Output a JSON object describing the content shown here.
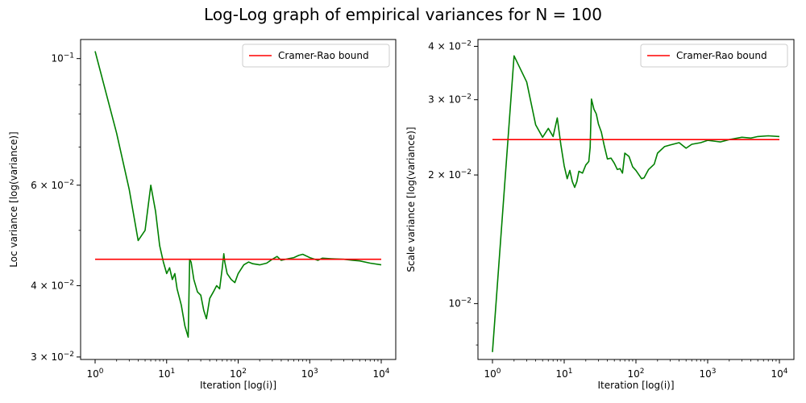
{
  "figure": {
    "title": "Log-Log graph of empirical variances for N = 100"
  },
  "colors": {
    "series": "#008000",
    "bound": "#ff0000",
    "axes": "#000000"
  },
  "chart_data": [
    {
      "type": "line",
      "xlabel": "Iteration [log(i)]",
      "ylabel": "Loc variance [log(variance)]",
      "xscale": "log",
      "yscale": "log",
      "xlim": [
        1,
        10000
      ],
      "ylim": [
        0.0297,
        0.108
      ],
      "x_ticks": [
        {
          "v": 1,
          "b": "10",
          "e": "0"
        },
        {
          "v": 10,
          "b": "10",
          "e": "1"
        },
        {
          "v": 100,
          "b": "10",
          "e": "2"
        },
        {
          "v": 1000,
          "b": "10",
          "e": "3"
        },
        {
          "v": 10000,
          "b": "10",
          "e": "4"
        }
      ],
      "y_ticks": [
        {
          "v": 0.1,
          "b": "10",
          "e": "−1"
        },
        {
          "v": 0.06,
          "b": "6 × 10",
          "e": "−2"
        },
        {
          "v": 0.04,
          "b": "4 × 10",
          "e": "−2"
        },
        {
          "v": 0.03,
          "b": "3 × 10",
          "e": "−2"
        }
      ],
      "y_minor": [
        0.05,
        0.07,
        0.08,
        0.09
      ],
      "legend": {
        "label": "Cramer-Rao bound",
        "position": "upper right"
      },
      "bound": {
        "name": "Cramer-Rao bound",
        "value": 0.0445,
        "x": [
          1,
          10000
        ]
      },
      "series": [
        {
          "x": [
            1,
            2,
            3,
            4,
            5,
            6,
            7,
            8,
            9,
            10,
            11,
            12,
            13,
            14,
            16,
            18,
            20,
            21,
            22,
            24,
            27,
            30,
            33,
            36,
            38,
            40,
            45,
            50,
            55,
            60,
            63,
            65,
            70,
            80,
            90,
            100,
            120,
            140,
            160,
            200,
            250,
            300,
            350,
            400,
            500,
            600,
            700,
            800,
            1000,
            1300,
            1500,
            2000,
            3000,
            4000,
            5000,
            7000,
            10000
          ],
          "y": [
            0.103,
            0.074,
            0.059,
            0.048,
            0.05,
            0.06,
            0.054,
            0.047,
            0.044,
            0.042,
            0.043,
            0.041,
            0.042,
            0.0395,
            0.037,
            0.034,
            0.0325,
            0.0445,
            0.044,
            0.041,
            0.039,
            0.0385,
            0.0362,
            0.035,
            0.0365,
            0.038,
            0.039,
            0.04,
            0.0395,
            0.043,
            0.0455,
            0.044,
            0.042,
            0.041,
            0.0405,
            0.042,
            0.0435,
            0.044,
            0.0437,
            0.0435,
            0.0438,
            0.0445,
            0.045,
            0.0443,
            0.0446,
            0.0448,
            0.0452,
            0.0454,
            0.0448,
            0.0443,
            0.0447,
            0.0446,
            0.0445,
            0.0443,
            0.0442,
            0.0438,
            0.0435
          ]
        }
      ]
    },
    {
      "type": "line",
      "xlabel": "Iteration [log(i)]",
      "ylabel": "Scale variance [log(variance)]",
      "xscale": "log",
      "yscale": "log",
      "xlim": [
        1,
        10000
      ],
      "ylim": [
        0.0074,
        0.0415
      ],
      "x_ticks": [
        {
          "v": 1,
          "b": "10",
          "e": "0"
        },
        {
          "v": 10,
          "b": "10",
          "e": "1"
        },
        {
          "v": 100,
          "b": "10",
          "e": "2"
        },
        {
          "v": 1000,
          "b": "10",
          "e": "3"
        },
        {
          "v": 10000,
          "b": "10",
          "e": "4"
        }
      ],
      "y_ticks": [
        {
          "v": 0.04,
          "b": "4 × 10",
          "e": "−2"
        },
        {
          "v": 0.03,
          "b": "3 × 10",
          "e": "−2"
        },
        {
          "v": 0.02,
          "b": "2 × 10",
          "e": "−2"
        },
        {
          "v": 0.01,
          "b": "10",
          "e": "−2"
        }
      ],
      "y_minor": [
        0.008,
        0.009
      ],
      "legend": {
        "label": "Cramer-Rao bound",
        "position": "upper right"
      },
      "bound": {
        "name": "Cramer-Rao bound",
        "value": 0.0242,
        "x": [
          1,
          10000
        ]
      },
      "series": [
        {
          "x": [
            1,
            2,
            3,
            4,
            5,
            6,
            7,
            8,
            9,
            10,
            11,
            12,
            13,
            14,
            15,
            16,
            18,
            20,
            22,
            23,
            24,
            26,
            28,
            30,
            33,
            36,
            40,
            45,
            50,
            55,
            60,
            65,
            70,
            80,
            90,
            100,
            120,
            130,
            150,
            180,
            200,
            250,
            300,
            400,
            500,
            600,
            800,
            1000,
            1500,
            2000,
            3000,
            4000,
            5000,
            7000,
            10000
          ],
          "y": [
            0.0077,
            0.038,
            0.033,
            0.0262,
            0.0245,
            0.0257,
            0.0246,
            0.0272,
            0.0235,
            0.021,
            0.0196,
            0.0205,
            0.0193,
            0.0187,
            0.0193,
            0.0204,
            0.0202,
            0.0211,
            0.0215,
            0.0232,
            0.0301,
            0.0285,
            0.0278,
            0.0263,
            0.0252,
            0.0235,
            0.0218,
            0.0219,
            0.0213,
            0.0206,
            0.0207,
            0.0202,
            0.0225,
            0.0221,
            0.0209,
            0.0205,
            0.0196,
            0.0197,
            0.0206,
            0.0212,
            0.0225,
            0.0233,
            0.0235,
            0.0238,
            0.0231,
            0.0236,
            0.0238,
            0.0241,
            0.0239,
            0.0242,
            0.0245,
            0.0244,
            0.0246,
            0.0247,
            0.0246
          ]
        }
      ]
    }
  ]
}
